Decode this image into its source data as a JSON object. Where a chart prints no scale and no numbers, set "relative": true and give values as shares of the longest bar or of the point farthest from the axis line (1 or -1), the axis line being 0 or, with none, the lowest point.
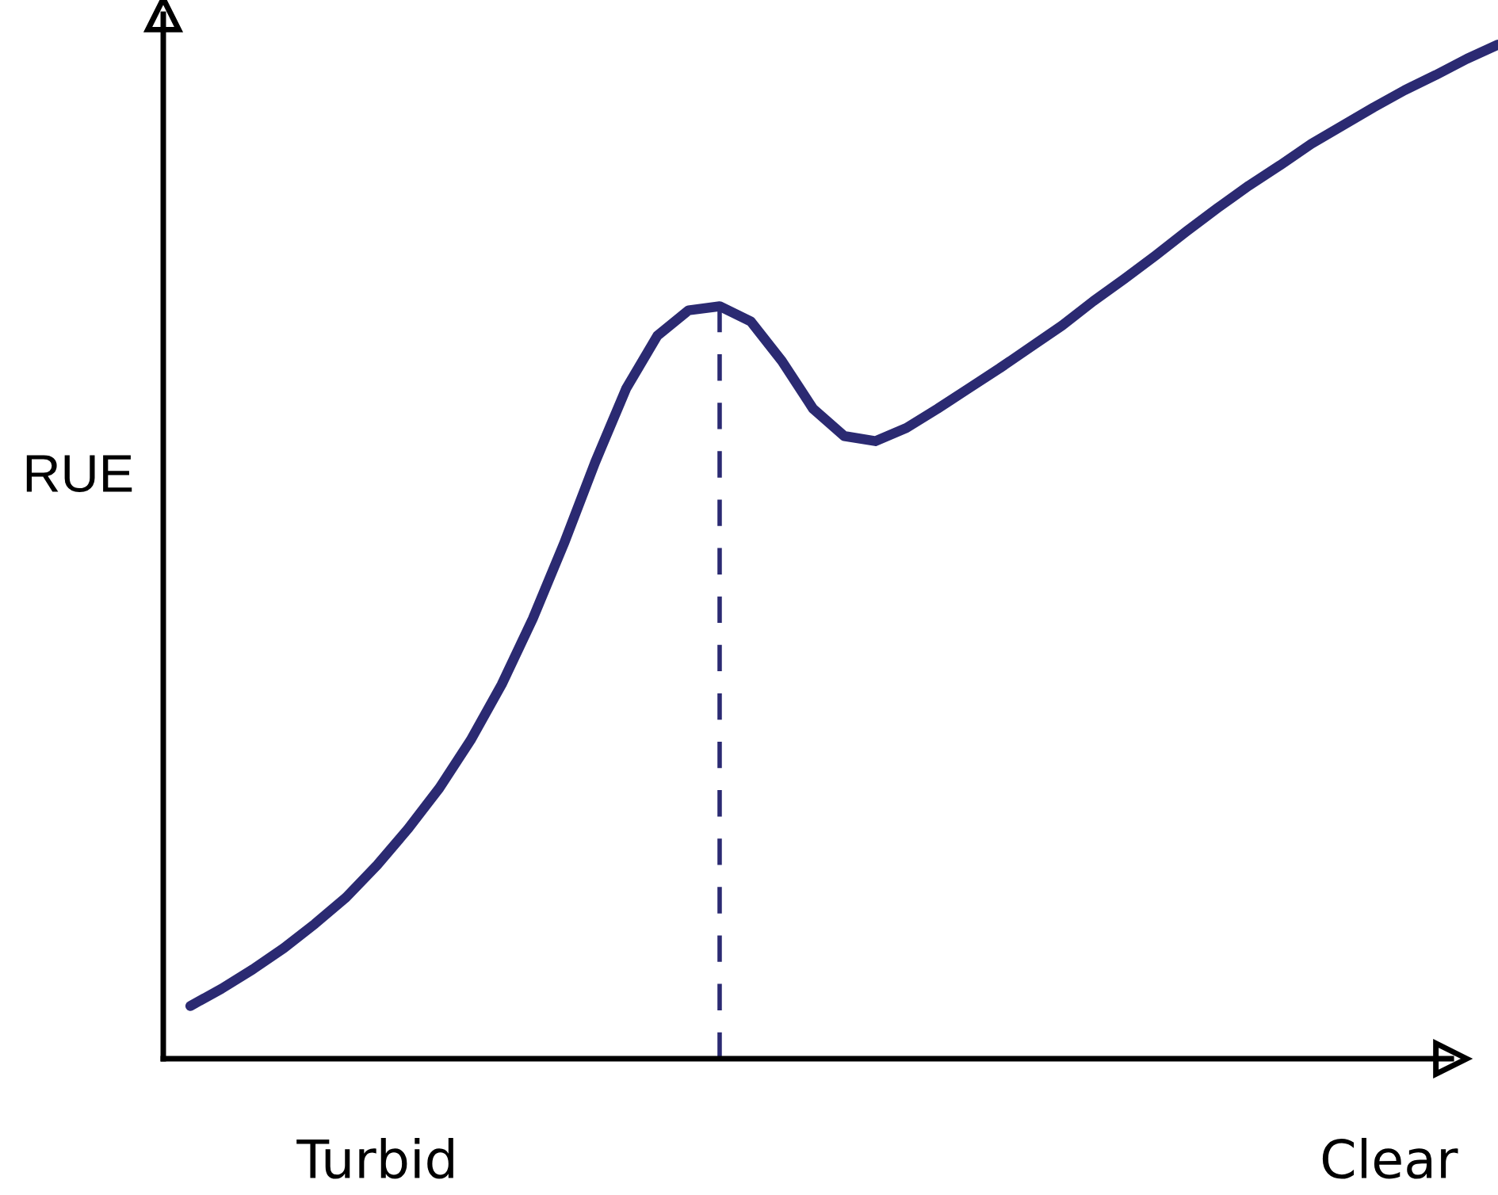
{
  "chart_data": {
    "type": "line",
    "relative": true,
    "ylabel": "RUE",
    "annotations": [
      "Turbid",
      "Clear"
    ],
    "categories": [
      null,
      null,
      null,
      null,
      null,
      null,
      null,
      null,
      null,
      null,
      null,
      null,
      null,
      null,
      null,
      null,
      null,
      null,
      null,
      null,
      null,
      null,
      null,
      null,
      null,
      null,
      null,
      null,
      null,
      null,
      null,
      null,
      null,
      null,
      null,
      null,
      null,
      null,
      null,
      null,
      null,
      null,
      null
    ],
    "series": [
      {
        "color": "#2b2a72",
        "values": [
          0.052,
          0.069,
          0.088,
          0.109,
          0.133,
          0.159,
          0.191,
          0.227,
          0.267,
          0.314,
          0.369,
          0.434,
          0.508,
          0.588,
          0.661,
          0.713,
          0.738,
          0.742,
          0.727,
          0.688,
          0.641,
          0.614,
          0.609,
          0.622,
          0.641,
          0.661,
          0.681,
          0.702,
          0.723,
          0.747,
          0.769,
          0.792,
          0.816,
          0.839,
          0.861,
          0.881,
          0.902,
          0.92,
          0.938,
          0.955,
          0.97,
          0.986,
          1
        ]
      }
    ],
    "marker": "none",
    "line_style": "solid"
  }
}
